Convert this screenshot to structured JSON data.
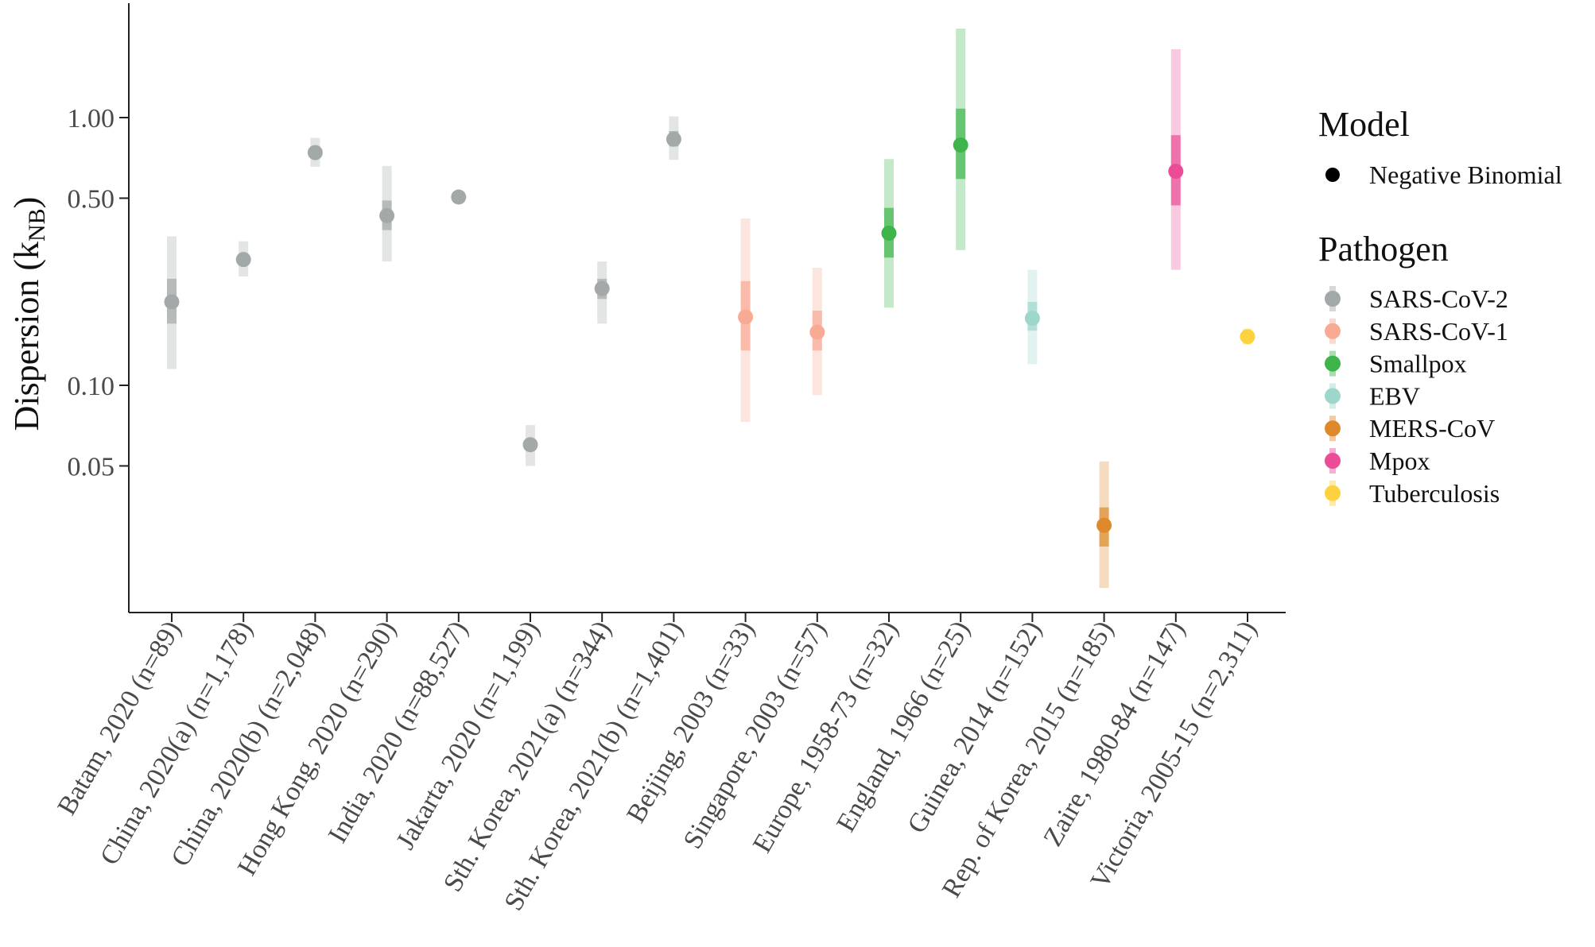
{
  "chart_data": {
    "type": "pointrange",
    "y_scale": "log",
    "ylabel": "Dispersion (k",
    "ylabel_sub": "NB",
    "ylabel_close": ")",
    "ylim": [
      0.016,
      3.0
    ],
    "yticks": [
      0.05,
      0.1,
      0.5,
      1.0
    ],
    "ytick_labels": [
      "0.05",
      "0.10",
      "0.50",
      "1.00"
    ],
    "categories": [
      "Batam, 2020 (n=89)",
      "China, 2020(a) (n=1,178)",
      "China, 2020(b) (n=2,048)",
      "Hong Kong, 2020 (n=290)",
      "India, 2020 (n=88,527)",
      "Jakarta, 2020 (n=1,199)",
      "Sth. Korea, 2021(a) (n=344)",
      "Sth. Korea, 2021(b) (n=1,401)",
      "Beijing, 2003 (n=33)",
      "Singapore, 2003 (n=57)",
      "Europe, 1958-73 (n=32)",
      "England, 1966 (n=25)",
      "Guinea, 2014 (n=152)",
      "Rep. of Korea, 2015 (n=185)",
      "Zaire, 1980-84 (n=147)",
      "Victoria, 2005-15 (n=2,311)"
    ],
    "points": [
      {
        "category": "Batam, 2020 (n=89)",
        "pathogen": "SARS-CoV-2",
        "estimate": 0.205,
        "ci50": [
          0.17,
          0.25
        ],
        "ci95": [
          0.115,
          0.36
        ]
      },
      {
        "category": "China, 2020(a) (n=1,178)",
        "pathogen": "SARS-CoV-2",
        "estimate": 0.295,
        "ci50": [
          0.28,
          0.31
        ],
        "ci95": [
          0.255,
          0.345
        ]
      },
      {
        "category": "China, 2020(b) (n=2,048)",
        "pathogen": "SARS-CoV-2",
        "estimate": 0.74,
        "ci50": [
          0.71,
          0.78
        ],
        "ci95": [
          0.655,
          0.84
        ]
      },
      {
        "category": "Hong Kong, 2020 (n=290)",
        "pathogen": "SARS-CoV-2",
        "estimate": 0.43,
        "ci50": [
          0.38,
          0.49
        ],
        "ci95": [
          0.29,
          0.66
        ]
      },
      {
        "category": "India, 2020 (n=88,527)",
        "pathogen": "SARS-CoV-2",
        "estimate": 0.505,
        "ci50": [
          0.5,
          0.51
        ],
        "ci95": [
          0.495,
          0.515
        ]
      },
      {
        "category": "Jakarta, 2020 (n=1,199)",
        "pathogen": "SARS-CoV-2",
        "estimate": 0.06,
        "ci50": [
          0.057,
          0.063
        ],
        "ci95": [
          0.05,
          0.071
        ]
      },
      {
        "category": "Sth. Korea, 2021(a) (n=344)",
        "pathogen": "SARS-CoV-2",
        "estimate": 0.23,
        "ci50": [
          0.21,
          0.25
        ],
        "ci95": [
          0.17,
          0.29
        ]
      },
      {
        "category": "Sth. Korea, 2021(b) (n=1,401)",
        "pathogen": "SARS-CoV-2",
        "estimate": 0.83,
        "ci50": [
          0.78,
          0.89
        ],
        "ci95": [
          0.695,
          1.01
        ]
      },
      {
        "category": "Beijing, 2003 (n=33)",
        "pathogen": "SARS-CoV-1",
        "estimate": 0.18,
        "ci50": [
          0.135,
          0.245
        ],
        "ci95": [
          0.073,
          0.42
        ]
      },
      {
        "category": "Singapore, 2003 (n=57)",
        "pathogen": "SARS-CoV-1",
        "estimate": 0.158,
        "ci50": [
          0.135,
          0.19
        ],
        "ci95": [
          0.092,
          0.275
        ]
      },
      {
        "category": "Europe, 1958-73 (n=32)",
        "pathogen": "Smallpox",
        "estimate": 0.37,
        "ci50": [
          0.3,
          0.46
        ],
        "ci95": [
          0.195,
          0.7
        ]
      },
      {
        "category": "England, 1966 (n=25)",
        "pathogen": "Smallpox",
        "estimate": 0.79,
        "ci50": [
          0.59,
          1.08
        ],
        "ci95": [
          0.32,
          2.15
        ]
      },
      {
        "category": "Guinea, 2014 (n=152)",
        "pathogen": "EBV",
        "estimate": 0.178,
        "ci50": [
          0.16,
          0.205
        ],
        "ci95": [
          0.12,
          0.27
        ]
      },
      {
        "category": "Rep. of Korea, 2015 (n=185)",
        "pathogen": "MERS-CoV",
        "estimate": 0.03,
        "ci50": [
          0.025,
          0.035
        ],
        "ci95": [
          0.0175,
          0.052
        ]
      },
      {
        "category": "Zaire, 1980-84 (n=147)",
        "pathogen": "Mpox",
        "estimate": 0.63,
        "ci50": [
          0.47,
          0.86
        ],
        "ci95": [
          0.27,
          1.8
        ]
      },
      {
        "category": "Victoria, 2005-15 (n=2,311)",
        "pathogen": "Tuberculosis",
        "estimate": 0.152,
        "ci50": [
          0.146,
          0.158
        ],
        "ci95": [
          0.142,
          0.163
        ]
      }
    ]
  },
  "legend": {
    "model_title": "Model",
    "model_items": [
      {
        "label": "Negative Binomial",
        "color": "#000000"
      }
    ],
    "pathogen_title": "Pathogen",
    "pathogen_items": [
      {
        "label": "SARS-CoV-2",
        "color": "#a2a9a8"
      },
      {
        "label": "SARS-CoV-1",
        "color": "#f9aa94"
      },
      {
        "label": "Smallpox",
        "color": "#3db54a"
      },
      {
        "label": "EBV",
        "color": "#9dd7cc"
      },
      {
        "label": "MERS-CoV",
        "color": "#de8a2c"
      },
      {
        "label": "Mpox",
        "color": "#ea4d96"
      },
      {
        "label": "Tuberculosis",
        "color": "#fdd23e"
      }
    ]
  }
}
